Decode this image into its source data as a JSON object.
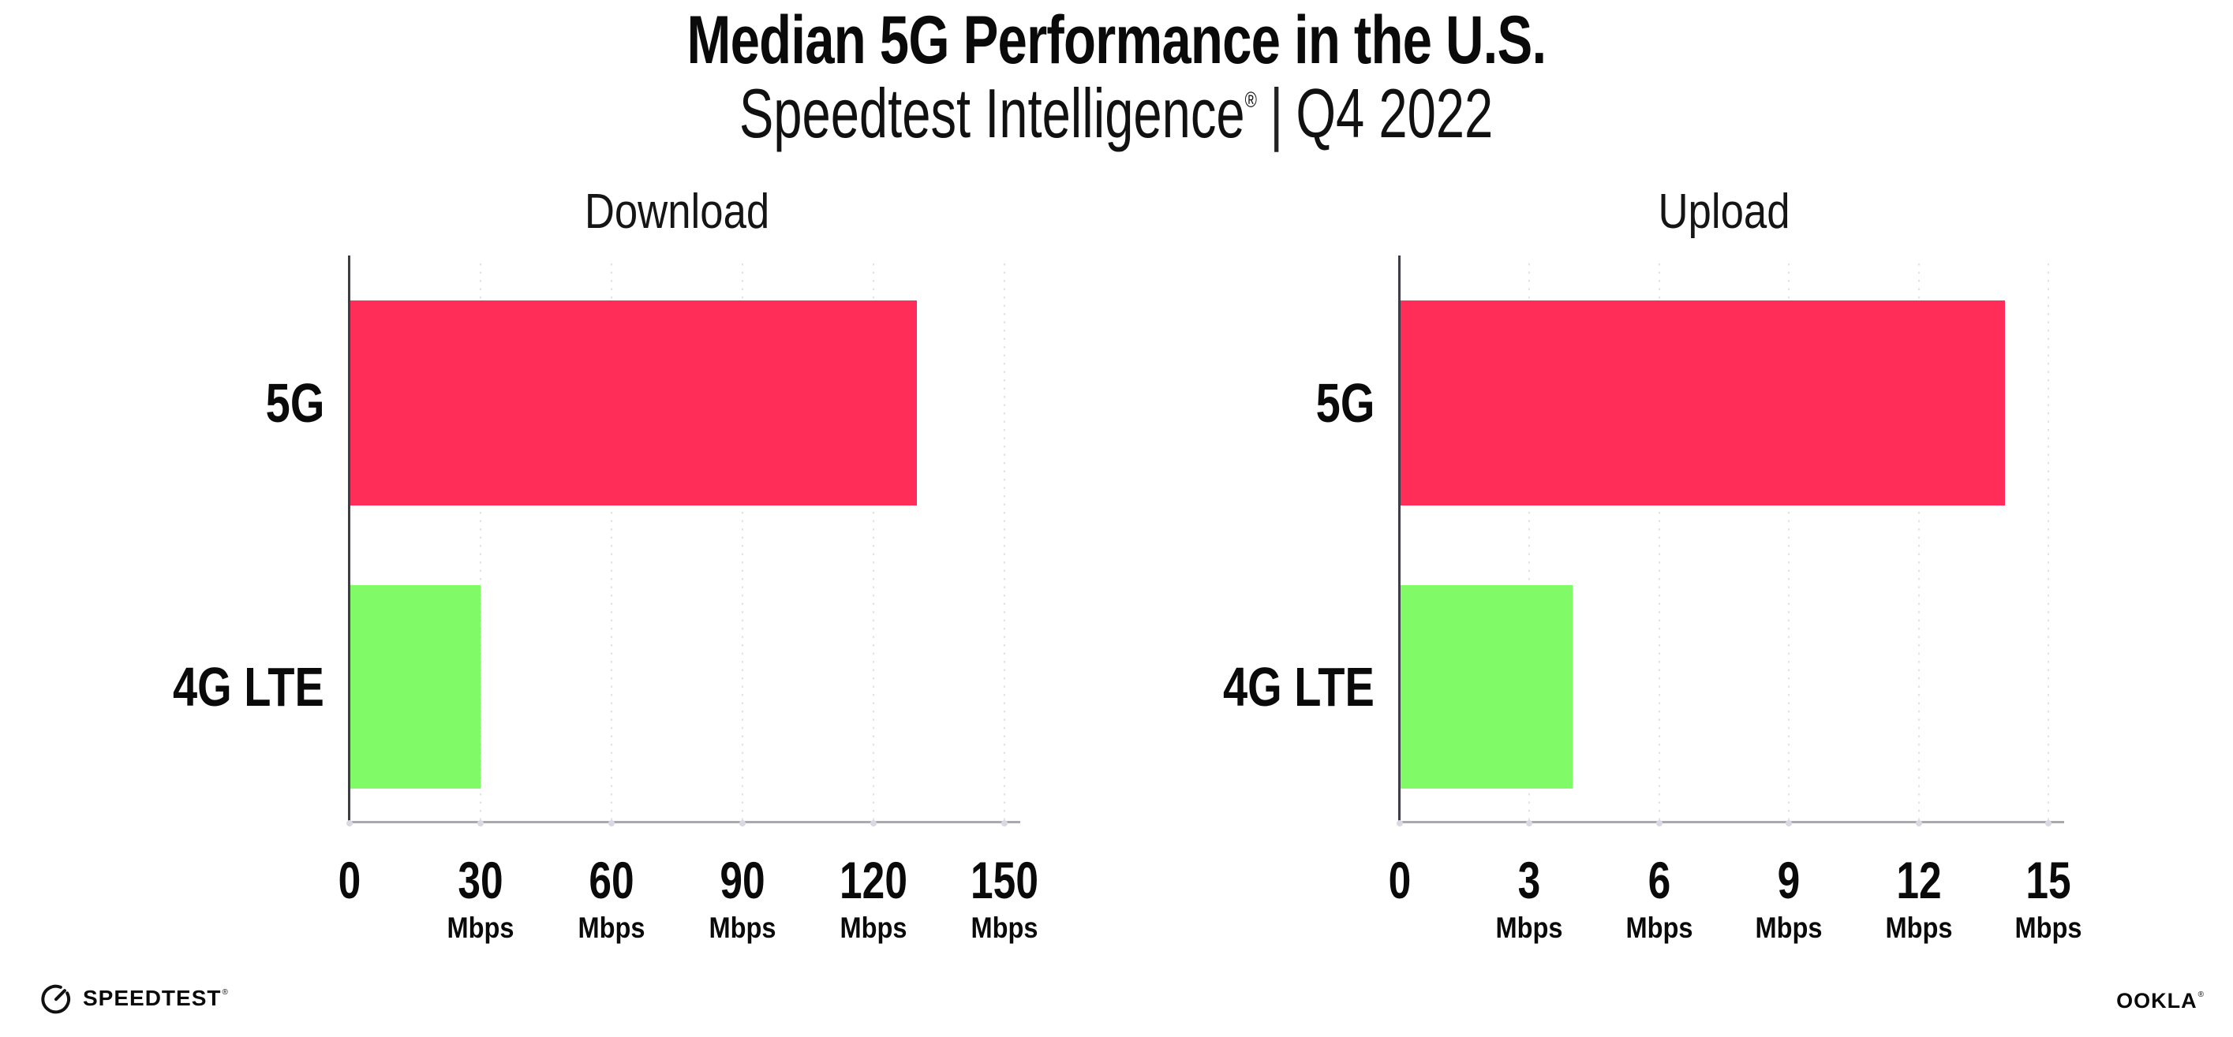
{
  "header": {
    "title": "Median 5G Performance in the U.S.",
    "subtitle_brand": "Speedtest Intelligence",
    "subtitle_mark": "®",
    "subtitle_divider": "|",
    "subtitle_period": "Q4 2022"
  },
  "chart_data": [
    {
      "type": "bar",
      "orientation": "horizontal",
      "title": "Download",
      "categories": [
        "5G",
        "4G LTE"
      ],
      "values": [
        130,
        30
      ],
      "unit": "Mbps",
      "xlim": [
        0,
        150
      ],
      "xticks": [
        0,
        30,
        60,
        90,
        120,
        150
      ],
      "bar_colors": [
        "#ff2d58",
        "#80fb67"
      ],
      "grid": "vertical-dotted",
      "legend": "none"
    },
    {
      "type": "bar",
      "orientation": "horizontal",
      "title": "Upload",
      "categories": [
        "5G",
        "4G LTE"
      ],
      "values": [
        14,
        4
      ],
      "unit": "Mbps",
      "xlim": [
        0,
        15
      ],
      "xticks": [
        0,
        3,
        6,
        9,
        12,
        15
      ],
      "bar_colors": [
        "#ff2d58",
        "#80fb67"
      ],
      "grid": "vertical-dotted",
      "legend": "none"
    }
  ],
  "footer": {
    "speedtest_label": "SPEEDTEST",
    "speedtest_mark": "®",
    "ookla_label": "OOKLA",
    "ookla_mark": "®"
  },
  "colors": {
    "bar_5g": "#ff2d58",
    "bar_4g_lte": "#80fb67",
    "gridline": "#e0e1ea",
    "axis_y": "#3d3d46",
    "axis_x": "#a9a9b2",
    "tick_dot": "#d8d9e3",
    "text": "#0a0a0a"
  }
}
